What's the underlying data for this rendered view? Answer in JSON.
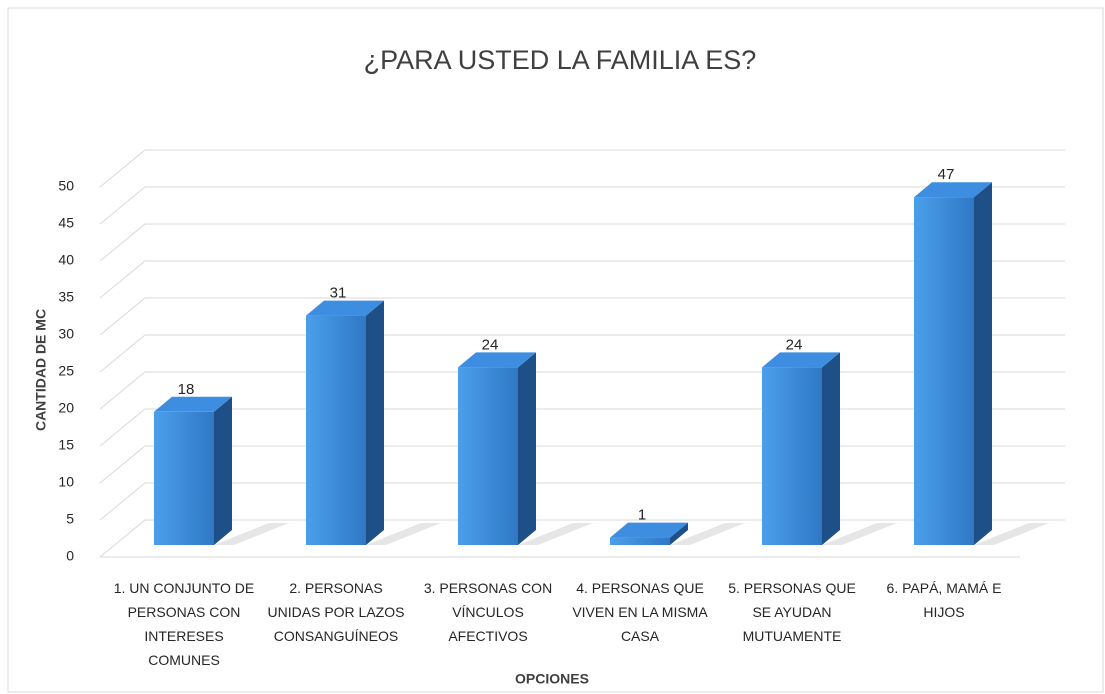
{
  "chart_data": {
    "type": "bar3d",
    "title": "¿PARA USTED LA FAMILIA ES?",
    "x_label": "OPCIONES",
    "y_label": "CANTIDAD DE MC",
    "categories": [
      "1. UN CONJUNTO DE PERSONAS CON INTERESES COMUNES",
      "2. PERSONAS UNIDAS POR LAZOS CONSANGUÍNEOS",
      "3. PERSONAS CON VÍNCULOS AFECTIVOS",
      "4. PERSONAS QUE VIVEN EN LA MISMA CASA",
      "5. PERSONAS QUE SE AYUDAN MUTUAMENTE",
      "6. PAPÁ, MAMÁ E HIJOS"
    ],
    "values": [
      18,
      31,
      24,
      1,
      24,
      47
    ],
    "color": "#3d8ee0",
    "ylim": [
      0,
      50
    ],
    "yticks": [
      0,
      5,
      10,
      15,
      20,
      25,
      30,
      35,
      40,
      45,
      50
    ],
    "grid": true
  }
}
